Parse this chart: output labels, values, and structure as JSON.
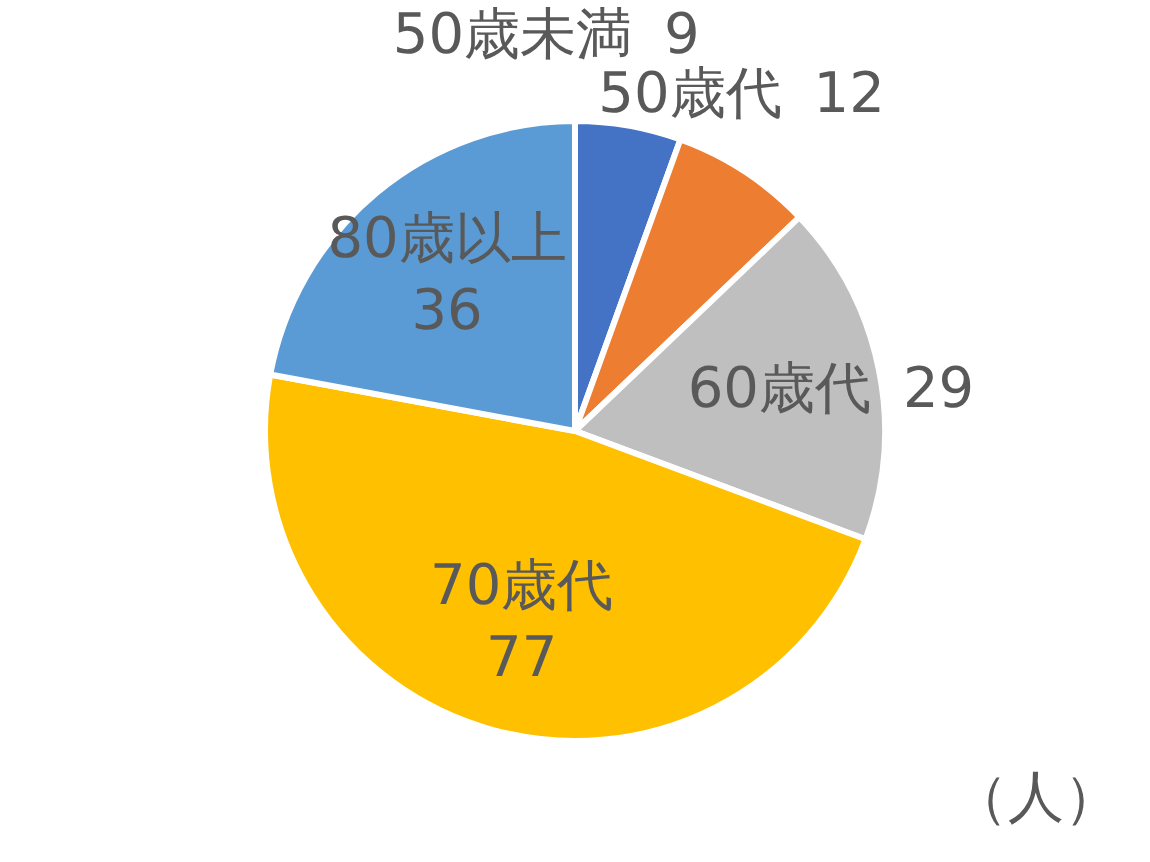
{
  "chart_data": {
    "type": "pie",
    "categories": [
      "50歳未満",
      "50歳代",
      "60歳代",
      "70歳代",
      "80歳以上"
    ],
    "values": [
      9,
      12,
      29,
      77,
      36
    ],
    "colors": [
      "#4472c4",
      "#ed7d31",
      "#bfbfbf",
      "#ffc000",
      "#5b9bd5"
    ],
    "data_labels": true,
    "annotations": [
      "（人）"
    ]
  }
}
